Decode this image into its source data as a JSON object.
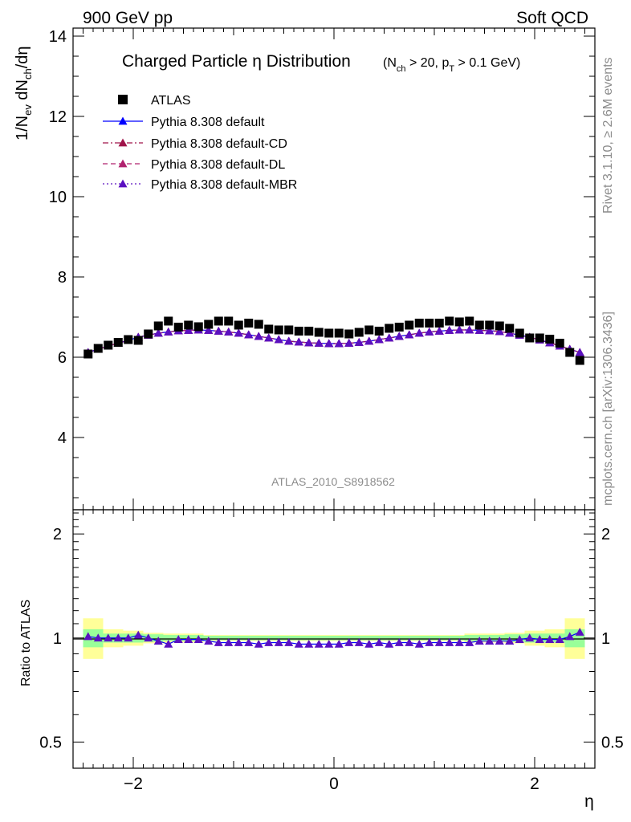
{
  "header": {
    "left": "900 GeV pp",
    "right": "Soft QCD"
  },
  "side_labels": {
    "rivet": "Rivet 3.1.10, ≥ 2.6M events",
    "mcplots": "mcplots.cern.ch [arXiv:1306.3436]"
  },
  "watermark": "ATLAS_2010_S8918562",
  "colors": {
    "atlas": "#000000",
    "default": "#0000ff",
    "cd": "#a0144a",
    "dl": "#b0226e",
    "mbr": "#5a10c0",
    "band_inner": "#99ff99",
    "band_outer": "#ffff99"
  },
  "chart_data": [
    {
      "type": "scatter",
      "title_main": "Charged Particle η Distribution",
      "title_sub": "(N_ch > 20, p_T > 0.1 GeV)",
      "ylabel": "1/N_ev dN_ch/dη",
      "ylim": [
        2.2,
        14.2
      ],
      "xlim": [
        -2.6,
        2.6
      ],
      "yticks": [
        4,
        6,
        8,
        10,
        12,
        14
      ],
      "legend_placement": "top-left",
      "x": [
        -2.45,
        -2.35,
        -2.25,
        -2.15,
        -2.05,
        -1.95,
        -1.85,
        -1.75,
        -1.65,
        -1.55,
        -1.45,
        -1.35,
        -1.25,
        -1.15,
        -1.05,
        -0.95,
        -0.85,
        -0.75,
        -0.65,
        -0.55,
        -0.45,
        -0.35,
        -0.25,
        -0.15,
        -0.05,
        0.05,
        0.15,
        0.25,
        0.35,
        0.45,
        0.55,
        0.65,
        0.75,
        0.85,
        0.95,
        1.05,
        1.15,
        1.25,
        1.35,
        1.45,
        1.55,
        1.65,
        1.75,
        1.85,
        1.95,
        2.05,
        2.15,
        2.25,
        2.35,
        2.45
      ],
      "series": [
        {
          "name": "ATLAS",
          "marker": "square",
          "values": [
            6.08,
            6.22,
            6.3,
            6.37,
            6.44,
            6.42,
            6.58,
            6.78,
            6.9,
            6.75,
            6.8,
            6.76,
            6.82,
            6.9,
            6.9,
            6.8,
            6.85,
            6.82,
            6.7,
            6.68,
            6.68,
            6.65,
            6.65,
            6.62,
            6.6,
            6.6,
            6.58,
            6.62,
            6.68,
            6.65,
            6.72,
            6.75,
            6.8,
            6.85,
            6.85,
            6.85,
            6.9,
            6.88,
            6.9,
            6.8,
            6.8,
            6.78,
            6.72,
            6.6,
            6.48,
            6.48,
            6.45,
            6.35,
            6.12,
            5.92
          ]
        },
        {
          "name": "Pythia 8.308 default",
          "marker": "triangle",
          "line": "solid",
          "values": [
            6.12,
            6.2,
            6.28,
            6.35,
            6.42,
            6.5,
            6.55,
            6.6,
            6.63,
            6.66,
            6.67,
            6.68,
            6.67,
            6.65,
            6.63,
            6.6,
            6.56,
            6.52,
            6.48,
            6.44,
            6.4,
            6.38,
            6.36,
            6.35,
            6.34,
            6.34,
            6.35,
            6.37,
            6.4,
            6.44,
            6.48,
            6.52,
            6.56,
            6.6,
            6.63,
            6.65,
            6.67,
            6.68,
            6.68,
            6.67,
            6.66,
            6.64,
            6.6,
            6.55,
            6.5,
            6.43,
            6.36,
            6.28,
            6.2,
            6.12
          ]
        },
        {
          "name": "Pythia 8.308 default-CD",
          "marker": "triangle",
          "line": "dashdot",
          "values": [
            6.12,
            6.2,
            6.28,
            6.35,
            6.42,
            6.5,
            6.55,
            6.6,
            6.63,
            6.66,
            6.67,
            6.68,
            6.67,
            6.65,
            6.63,
            6.6,
            6.56,
            6.52,
            6.48,
            6.44,
            6.4,
            6.38,
            6.36,
            6.35,
            6.34,
            6.34,
            6.35,
            6.37,
            6.4,
            6.44,
            6.48,
            6.52,
            6.56,
            6.6,
            6.63,
            6.65,
            6.67,
            6.68,
            6.68,
            6.67,
            6.66,
            6.64,
            6.6,
            6.55,
            6.5,
            6.43,
            6.36,
            6.28,
            6.2,
            6.12
          ]
        },
        {
          "name": "Pythia 8.308 default-DL",
          "marker": "triangle",
          "line": "dashed",
          "values": [
            6.12,
            6.2,
            6.28,
            6.35,
            6.42,
            6.5,
            6.55,
            6.6,
            6.63,
            6.66,
            6.67,
            6.68,
            6.67,
            6.65,
            6.63,
            6.6,
            6.56,
            6.52,
            6.48,
            6.44,
            6.4,
            6.38,
            6.36,
            6.35,
            6.34,
            6.34,
            6.35,
            6.37,
            6.4,
            6.44,
            6.48,
            6.52,
            6.56,
            6.6,
            6.63,
            6.65,
            6.67,
            6.68,
            6.68,
            6.67,
            6.66,
            6.64,
            6.6,
            6.55,
            6.5,
            6.43,
            6.36,
            6.28,
            6.2,
            6.12
          ]
        },
        {
          "name": "Pythia 8.308 default-MBR",
          "marker": "triangle",
          "line": "dotted",
          "values": [
            6.12,
            6.2,
            6.28,
            6.35,
            6.42,
            6.5,
            6.55,
            6.6,
            6.63,
            6.66,
            6.67,
            6.68,
            6.67,
            6.65,
            6.63,
            6.6,
            6.56,
            6.52,
            6.48,
            6.44,
            6.4,
            6.38,
            6.36,
            6.35,
            6.34,
            6.34,
            6.35,
            6.37,
            6.4,
            6.44,
            6.48,
            6.52,
            6.56,
            6.6,
            6.63,
            6.65,
            6.67,
            6.68,
            6.68,
            6.67,
            6.66,
            6.64,
            6.6,
            6.55,
            6.5,
            6.43,
            6.36,
            6.28,
            6.2,
            6.12
          ]
        }
      ]
    },
    {
      "type": "scatter",
      "ylabel": "Ratio to ATLAS",
      "xlabel": "η",
      "xlim": [
        -2.6,
        2.6
      ],
      "ylim": [
        0.42,
        2.35
      ],
      "log_y": true,
      "yticks": [
        0.5,
        1,
        2
      ],
      "xticks": [
        -2,
        0,
        2
      ],
      "x": [
        -2.45,
        -2.35,
        -2.25,
        -2.15,
        -2.05,
        -1.95,
        -1.85,
        -1.75,
        -1.65,
        -1.55,
        -1.45,
        -1.35,
        -1.25,
        -1.15,
        -1.05,
        -0.95,
        -0.85,
        -0.75,
        -0.65,
        -0.55,
        -0.45,
        -0.35,
        -0.25,
        -0.15,
        -0.05,
        0.05,
        0.15,
        0.25,
        0.35,
        0.45,
        0.55,
        0.65,
        0.75,
        0.85,
        0.95,
        1.05,
        1.15,
        1.25,
        1.35,
        1.45,
        1.55,
        1.65,
        1.75,
        1.85,
        1.95,
        2.05,
        2.15,
        2.25,
        2.35,
        2.45
      ],
      "bands": {
        "edges": [
          -2.5,
          -2.3,
          -2.1,
          -1.9,
          -1.7,
          -1.3,
          -0.7,
          0.7,
          1.3,
          1.7,
          1.9,
          2.1,
          2.3,
          2.5
        ],
        "inner": [
          [
            0.94,
            1.06
          ],
          [
            0.97,
            1.03
          ],
          [
            0.97,
            1.03
          ],
          [
            0.975,
            1.025
          ],
          [
            0.98,
            1.02
          ],
          [
            0.985,
            1.015
          ],
          [
            0.985,
            1.015
          ],
          [
            0.985,
            1.015
          ],
          [
            0.98,
            1.02
          ],
          [
            0.975,
            1.025
          ],
          [
            0.97,
            1.03
          ],
          [
            0.97,
            1.03
          ],
          [
            0.94,
            1.06
          ]
        ],
        "outer": [
          [
            0.87,
            1.14
          ],
          [
            0.94,
            1.06
          ],
          [
            0.95,
            1.05
          ],
          [
            0.965,
            1.035
          ],
          [
            0.97,
            1.03
          ],
          [
            0.98,
            1.02
          ],
          [
            0.98,
            1.02
          ],
          [
            0.98,
            1.02
          ],
          [
            0.97,
            1.03
          ],
          [
            0.965,
            1.035
          ],
          [
            0.95,
            1.05
          ],
          [
            0.94,
            1.06
          ],
          [
            0.87,
            1.14
          ]
        ]
      },
      "series": [
        {
          "name": "Pythia 8.308 default",
          "values": [
            1.01,
            1.0,
            1.0,
            1.0,
            1.0,
            1.02,
            1.0,
            0.98,
            0.96,
            0.99,
            0.99,
            0.99,
            0.98,
            0.97,
            0.97,
            0.97,
            0.97,
            0.96,
            0.97,
            0.97,
            0.97,
            0.96,
            0.96,
            0.96,
            0.96,
            0.96,
            0.97,
            0.97,
            0.96,
            0.97,
            0.96,
            0.97,
            0.97,
            0.96,
            0.97,
            0.97,
            0.97,
            0.97,
            0.97,
            0.98,
            0.98,
            0.98,
            0.98,
            0.99,
            1.0,
            0.99,
            0.99,
            0.99,
            1.01,
            1.04
          ]
        }
      ]
    }
  ]
}
